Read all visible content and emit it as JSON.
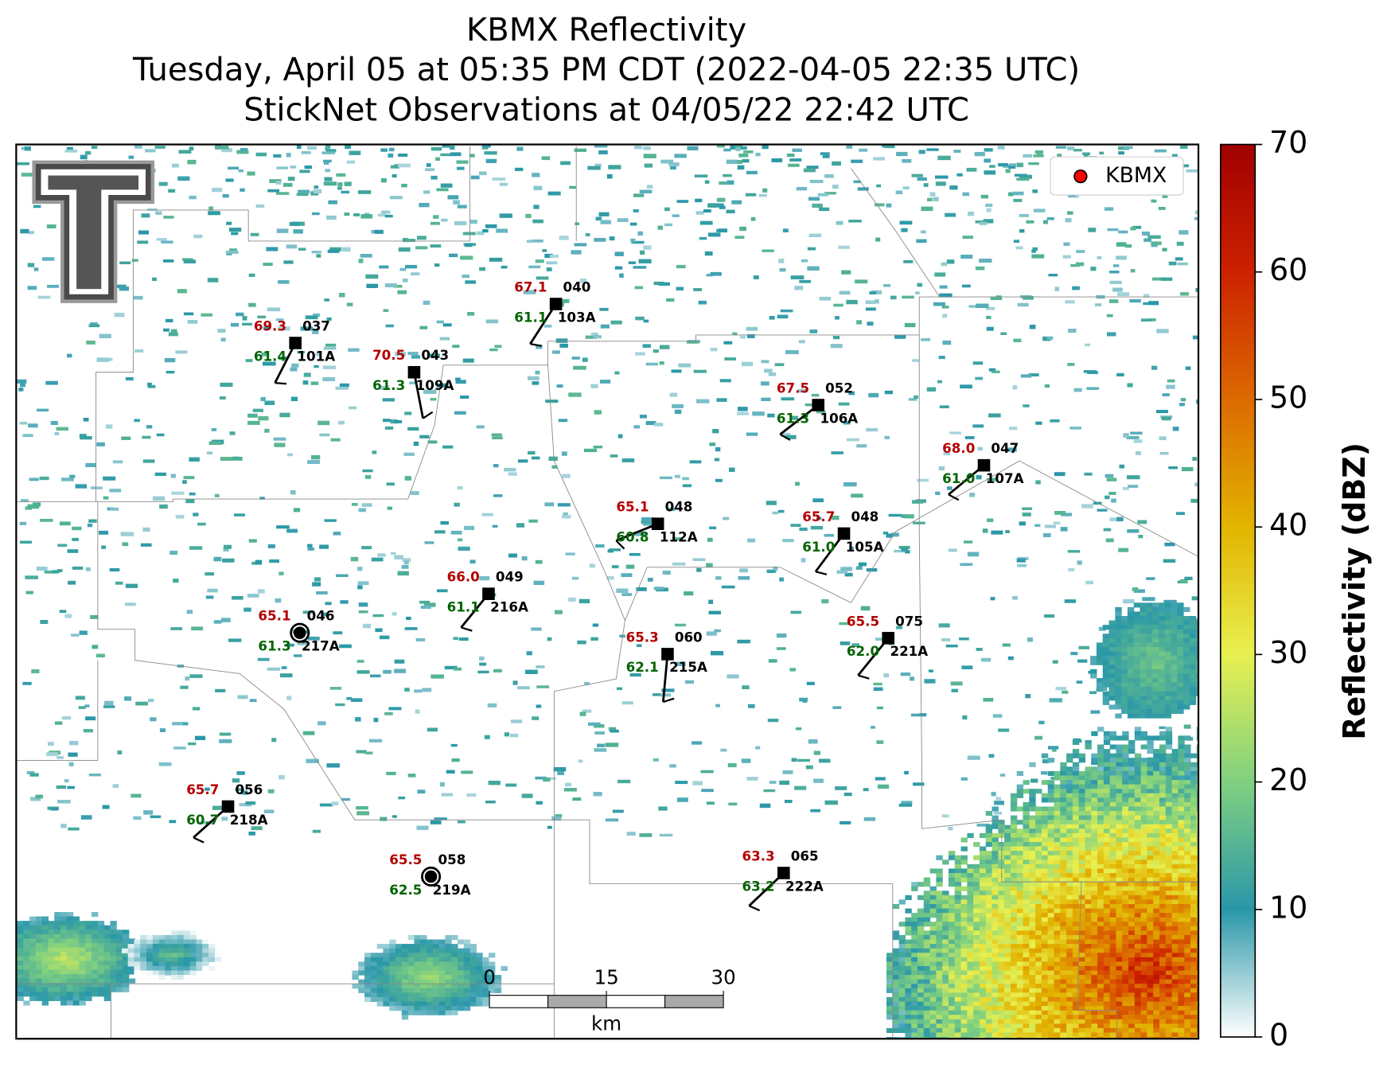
{
  "title": [
    "KBMX Reflectivity",
    "Tuesday, April 05 at 05:35 PM CDT (2022-04-05 22:35 UTC)",
    "StickNet Observations at 04/05/22 22:42 UTC"
  ],
  "legend": "KBMX",
  "stations": [
    {
      "temp": "69.3",
      "dewpoint": "61.4",
      "code": "037",
      "id": "101A"
    },
    {
      "temp": "70.5",
      "dewpoint": "61.3",
      "code": "043",
      "id": "109A"
    },
    {
      "temp": "67.1",
      "dewpoint": "61.1",
      "code": "040",
      "id": "103A"
    },
    {
      "temp": "67.5",
      "dewpoint": "61.3",
      "code": "052",
      "id": "106A"
    },
    {
      "temp": "68.0",
      "dewpoint": "61.0",
      "code": "047",
      "id": "107A"
    },
    {
      "temp": "65.1",
      "dewpoint": "60.8",
      "code": "048",
      "id": "112A"
    },
    {
      "temp": "65.7",
      "dewpoint": "61.0",
      "code": "048",
      "id": "105A"
    },
    {
      "temp": "66.0",
      "dewpoint": "61.1",
      "code": "049",
      "id": "216A"
    },
    {
      "temp": "65.1",
      "dewpoint": "61.3",
      "code": "046",
      "id": "217A"
    },
    {
      "temp": "65.3",
      "dewpoint": "62.1",
      "code": "060",
      "id": "215A"
    },
    {
      "temp": "65.5",
      "dewpoint": "62.0",
      "code": "075",
      "id": "221A"
    },
    {
      "temp": "65.7",
      "dewpoint": "60.7",
      "code": "056",
      "id": "218A"
    },
    {
      "temp": "65.5",
      "dewpoint": "62.5",
      "code": "058",
      "id": "219A"
    },
    {
      "temp": "63.3",
      "dewpoint": "63.2",
      "code": "065",
      "id": "222A"
    }
  ],
  "scale_bar": {
    "ticks": [
      0,
      15,
      30
    ],
    "unit": "km"
  },
  "colorbar": {
    "label": "Reflectivity (dBZ)",
    "lim": [
      0,
      70
    ],
    "ticks": [
      0,
      10,
      20,
      30,
      40,
      50,
      60,
      70
    ]
  }
}
